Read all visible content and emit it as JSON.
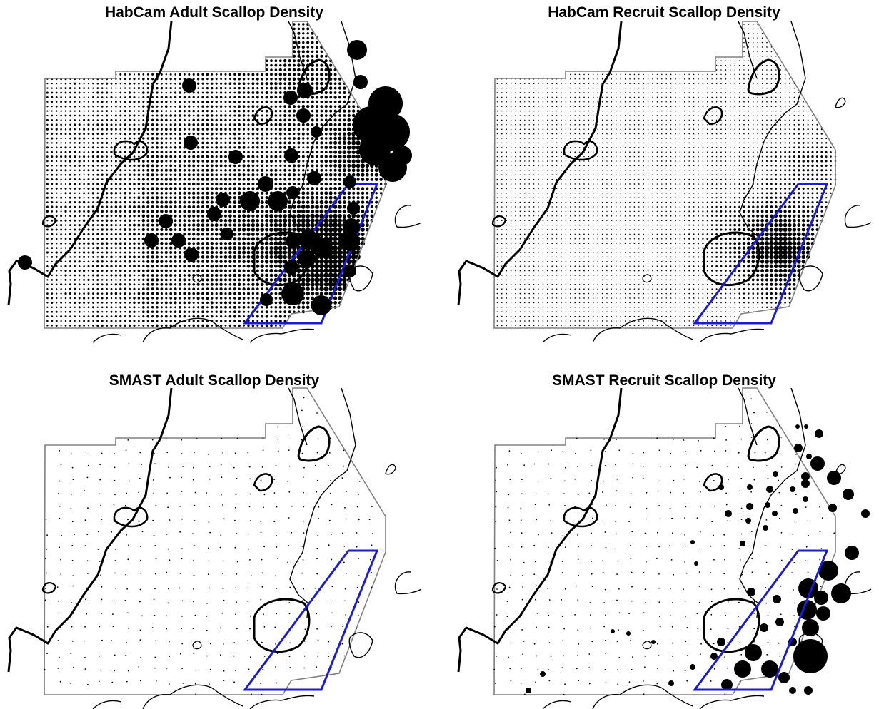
{
  "figure": {
    "panels": [
      {
        "id": "habcam-adult",
        "title": "HabCam Adult Scallop Density",
        "survey": "HabCam",
        "size_class": "Adult",
        "rendering": "dense-grid",
        "intensity": "high"
      },
      {
        "id": "habcam-recruit",
        "title": "HabCam Recruit Scallop Density",
        "survey": "HabCam",
        "size_class": "Recruit",
        "rendering": "dense-grid",
        "intensity": "low"
      },
      {
        "id": "smast-adult",
        "title": "SMAST Adult Scallop Density",
        "survey": "SMAST",
        "size_class": "Adult",
        "rendering": "proportional-circles"
      },
      {
        "id": "smast-recruit",
        "title": "SMAST Recruit Scallop Density",
        "survey": "SMAST",
        "size_class": "Recruit",
        "rendering": "proportional-circles"
      }
    ],
    "colors": {
      "background": "#ffffff",
      "depth_contour": "#000000",
      "survey_boundary": "#808080",
      "study_area_outline": "#1a1adb",
      "density_mark": "#000000"
    }
  }
}
